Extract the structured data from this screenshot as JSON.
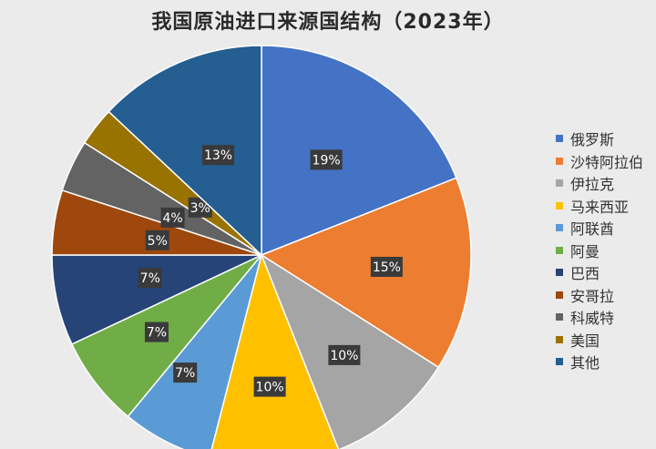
{
  "chart_data": {
    "type": "pie",
    "title": "我国原油进口来源国结构（2023年）",
    "legend_position": "right",
    "slices": [
      {
        "name": "俄罗斯",
        "value": 19,
        "label": "19%",
        "color": "#4472c4"
      },
      {
        "name": "沙特阿拉伯",
        "value": 15,
        "label": "15%",
        "color": "#ed7d31"
      },
      {
        "name": "伊拉克",
        "value": 10,
        "label": "10%",
        "color": "#a5a5a5"
      },
      {
        "name": "马来西亚",
        "value": 10,
        "label": "10%",
        "color": "#ffc000"
      },
      {
        "name": "阿联酋",
        "value": 7,
        "label": "7%",
        "color": "#5b9bd5"
      },
      {
        "name": "阿曼",
        "value": 7,
        "label": "7%",
        "color": "#70ad47"
      },
      {
        "name": "巴西",
        "value": 7,
        "label": "7%",
        "color": "#264478"
      },
      {
        "name": "安哥拉",
        "value": 5,
        "label": "5%",
        "color": "#9e480e"
      },
      {
        "name": "科威特",
        "value": 4,
        "label": "4%",
        "color": "#636363"
      },
      {
        "name": "美国",
        "value": 3,
        "label": "3%",
        "color": "#997300"
      },
      {
        "name": "其他",
        "value": 13,
        "label": "13%",
        "color": "#255e91"
      }
    ]
  }
}
